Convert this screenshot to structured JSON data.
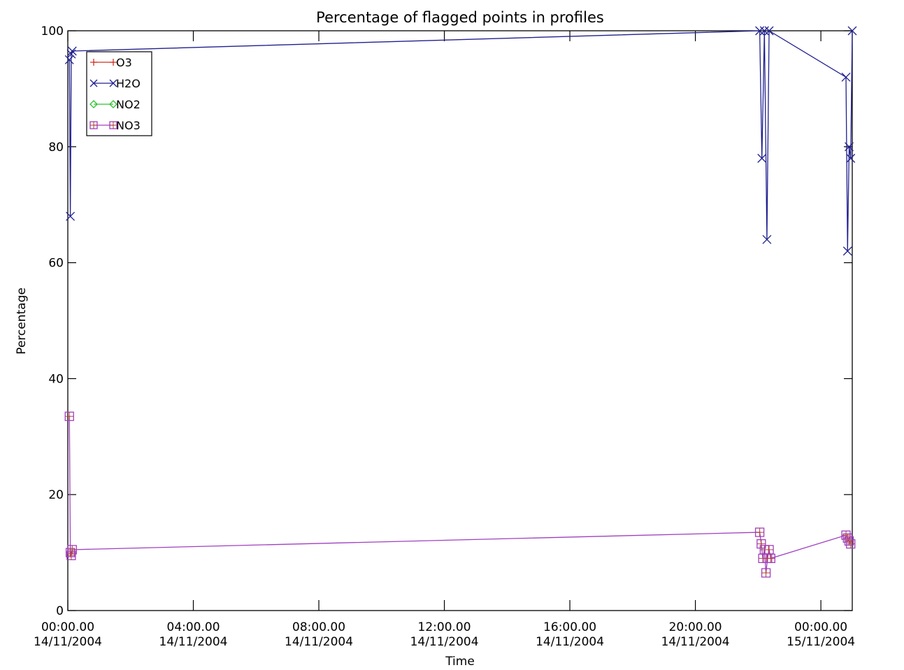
{
  "chart_data": {
    "type": "line",
    "title": "Percentage of flagged points in profiles",
    "xlabel": "Time",
    "ylabel": "Percentage",
    "xlim_hours": [
      0,
      25
    ],
    "ylim": [
      0,
      100
    ],
    "x_ticks": [
      {
        "hour": 0,
        "line1": "00:00.00",
        "line2": "14/11/2004"
      },
      {
        "hour": 4,
        "line1": "04:00.00",
        "line2": "14/11/2004"
      },
      {
        "hour": 8,
        "line1": "08:00.00",
        "line2": "14/11/2004"
      },
      {
        "hour": 12,
        "line1": "12:00.00",
        "line2": "14/11/2004"
      },
      {
        "hour": 16,
        "line1": "16:00.00",
        "line2": "14/11/2004"
      },
      {
        "hour": 20,
        "line1": "20:00.00",
        "line2": "14/11/2004"
      },
      {
        "hour": 24,
        "line1": "00:00.00",
        "line2": "15/11/2004"
      }
    ],
    "y_ticks": [
      "0",
      "20",
      "40",
      "60",
      "80",
      "100"
    ],
    "legend_position": "top-left",
    "series": [
      {
        "name": "O3",
        "color": "#d03020",
        "marker": "plus",
        "x": [],
        "y": []
      },
      {
        "name": "H2O",
        "color": "#202090",
        "marker": "x",
        "x": [
          0.05,
          0.08,
          0.11,
          0.14,
          22.05,
          22.12,
          22.2,
          22.28,
          22.35,
          24.8,
          24.85,
          24.9,
          24.95,
          25.0
        ],
        "y": [
          95,
          68,
          96,
          96.5,
          100,
          78,
          100,
          64,
          100,
          92,
          62,
          80,
          78,
          100
        ]
      },
      {
        "name": "NO2",
        "color": "#30c030",
        "marker": "diamond",
        "x": [],
        "y": []
      },
      {
        "name": "NO3",
        "color": "#a040c0",
        "marker": "square",
        "x": [
          0.05,
          0.08,
          0.11,
          0.14,
          22.05,
          22.1,
          22.15,
          22.2,
          22.25,
          22.3,
          22.35,
          22.4,
          24.8,
          24.85,
          24.9,
          24.95
        ],
        "y": [
          33.5,
          10,
          9.5,
          10.5,
          13.5,
          11.5,
          9,
          10.5,
          6.5,
          9,
          10.5,
          9,
          13,
          12.5,
          12,
          11.5
        ]
      }
    ]
  }
}
